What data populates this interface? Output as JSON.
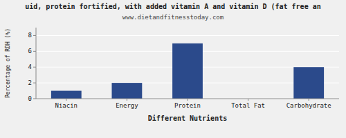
{
  "chart_data": {
    "type": "bar",
    "title": "uid, protein fortified, with added vitamin A and vitamin D (fat free an",
    "subtitle": "www.dietandfitnesstoday.com",
    "xlabel": "Different Nutrients",
    "ylabel": "Percentage of RDH (%)",
    "categories": [
      "Niacin",
      "Energy",
      "Protein",
      "Total Fat",
      "Carbohydrate"
    ],
    "values": [
      1.0,
      2.0,
      7.0,
      0.0,
      4.0
    ],
    "color": "#2b4a8b",
    "ylim": [
      0,
      9
    ],
    "yticks": [
      0,
      2,
      4,
      6,
      8
    ],
    "grid": true
  }
}
